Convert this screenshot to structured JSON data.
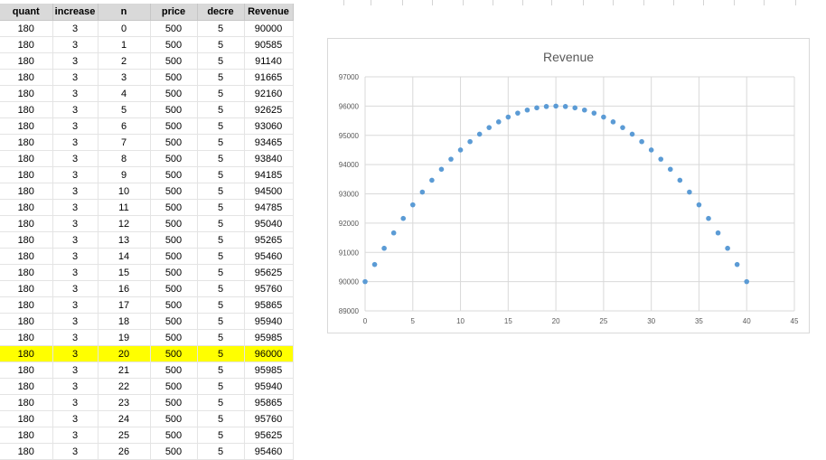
{
  "sheet": {
    "columns": [
      "quant",
      "increase",
      "n",
      "price",
      "decre",
      "Revenue"
    ],
    "rows": [
      [
        "180",
        "3",
        "0",
        "500",
        "5",
        "90000"
      ],
      [
        "180",
        "3",
        "1",
        "500",
        "5",
        "90585"
      ],
      [
        "180",
        "3",
        "2",
        "500",
        "5",
        "91140"
      ],
      [
        "180",
        "3",
        "3",
        "500",
        "5",
        "91665"
      ],
      [
        "180",
        "3",
        "4",
        "500",
        "5",
        "92160"
      ],
      [
        "180",
        "3",
        "5",
        "500",
        "5",
        "92625"
      ],
      [
        "180",
        "3",
        "6",
        "500",
        "5",
        "93060"
      ],
      [
        "180",
        "3",
        "7",
        "500",
        "5",
        "93465"
      ],
      [
        "180",
        "3",
        "8",
        "500",
        "5",
        "93840"
      ],
      [
        "180",
        "3",
        "9",
        "500",
        "5",
        "94185"
      ],
      [
        "180",
        "3",
        "10",
        "500",
        "5",
        "94500"
      ],
      [
        "180",
        "3",
        "11",
        "500",
        "5",
        "94785"
      ],
      [
        "180",
        "3",
        "12",
        "500",
        "5",
        "95040"
      ],
      [
        "180",
        "3",
        "13",
        "500",
        "5",
        "95265"
      ],
      [
        "180",
        "3",
        "14",
        "500",
        "5",
        "95460"
      ],
      [
        "180",
        "3",
        "15",
        "500",
        "5",
        "95625"
      ],
      [
        "180",
        "3",
        "16",
        "500",
        "5",
        "95760"
      ],
      [
        "180",
        "3",
        "17",
        "500",
        "5",
        "95865"
      ],
      [
        "180",
        "3",
        "18",
        "500",
        "5",
        "95940"
      ],
      [
        "180",
        "3",
        "19",
        "500",
        "5",
        "95985"
      ],
      [
        "180",
        "3",
        "20",
        "500",
        "5",
        "96000"
      ],
      [
        "180",
        "3",
        "21",
        "500",
        "5",
        "95985"
      ],
      [
        "180",
        "3",
        "22",
        "500",
        "5",
        "95940"
      ],
      [
        "180",
        "3",
        "23",
        "500",
        "5",
        "95865"
      ],
      [
        "180",
        "3",
        "24",
        "500",
        "5",
        "95760"
      ],
      [
        "180",
        "3",
        "25",
        "500",
        "5",
        "95625"
      ],
      [
        "180",
        "3",
        "26",
        "500",
        "5",
        "95460"
      ]
    ],
    "highlighted_row": 20,
    "highlight_color": "#ffff00",
    "header_color": "#d9d9d9"
  },
  "chart_data": {
    "type": "scatter",
    "title": "Revenue",
    "xlabel": "",
    "ylabel": "",
    "xlim": [
      0,
      45
    ],
    "ylim": [
      89000,
      97000
    ],
    "x_ticks": [
      "0",
      "5",
      "10",
      "15",
      "20",
      "25",
      "30",
      "35",
      "40",
      "45"
    ],
    "y_ticks": [
      "89000",
      "90000",
      "91000",
      "92000",
      "93000",
      "94000",
      "95000",
      "96000",
      "97000"
    ],
    "grid": true,
    "legend": "none",
    "marker_color": "#5b9bd5",
    "x": [
      0,
      1,
      2,
      3,
      4,
      5,
      6,
      7,
      8,
      9,
      10,
      11,
      12,
      13,
      14,
      15,
      16,
      17,
      18,
      19,
      20,
      21,
      22,
      23,
      24,
      25,
      26,
      27,
      28,
      29,
      30,
      31,
      32,
      33,
      34,
      35,
      36,
      37,
      38,
      39,
      40
    ],
    "y": [
      90000,
      90585,
      91140,
      91665,
      92160,
      92625,
      93060,
      93465,
      93840,
      94185,
      94500,
      94785,
      95040,
      95265,
      95460,
      95625,
      95760,
      95865,
      95940,
      95985,
      96000,
      95985,
      95940,
      95865,
      95760,
      95625,
      95460,
      95265,
      95040,
      94785,
      94500,
      94185,
      93840,
      93465,
      93060,
      92625,
      92160,
      91665,
      91140,
      90585,
      90000
    ]
  }
}
